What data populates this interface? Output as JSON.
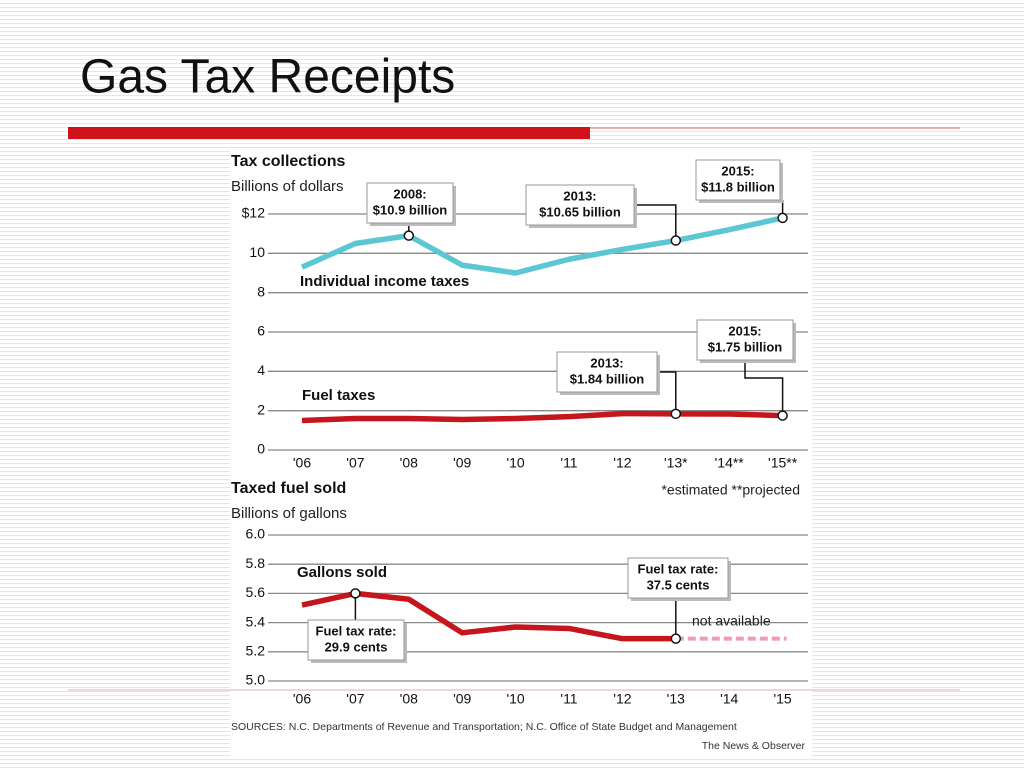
{
  "slide": {
    "title": "Gas Tax Receipts"
  },
  "chart_data": [
    {
      "type": "line",
      "title": "Tax collections",
      "subtitle": "Billions of dollars",
      "categories": [
        "'06",
        "'07",
        "'08",
        "'09",
        "'10",
        "'11",
        "'12",
        "'13*",
        "'14**",
        "'15**"
      ],
      "series": [
        {
          "name": "Individual income taxes",
          "color": "#5cc6d3",
          "values": [
            9.3,
            10.5,
            10.9,
            9.4,
            9.0,
            9.7,
            10.2,
            10.65,
            11.2,
            11.8
          ]
        },
        {
          "name": "Fuel taxes",
          "color": "#c4161c",
          "values": [
            1.5,
            1.6,
            1.6,
            1.55,
            1.6,
            1.7,
            1.85,
            1.84,
            1.83,
            1.75
          ]
        }
      ],
      "ylim": [
        0,
        12
      ],
      "yticks": [
        0,
        2,
        4,
        6,
        8,
        10,
        {
          "value": 12,
          "label": "$12"
        }
      ],
      "grid": true,
      "annotations": [
        [
          "2008:",
          "$10.9 billion"
        ],
        [
          "2013:",
          "$10.65 billion"
        ],
        [
          "2015:",
          "$11.8 billion"
        ],
        [
          "2013:",
          "$1.84 billion"
        ],
        [
          "2015:",
          "$1.75 billion"
        ]
      ],
      "note": "*estimated  **projected"
    },
    {
      "type": "line",
      "title": "Taxed fuel sold",
      "subtitle": "Billions of gallons",
      "categories": [
        "'06",
        "'07",
        "'08",
        "'09",
        "'10",
        "'11",
        "'12",
        "'13",
        "'14",
        "'15"
      ],
      "series": [
        {
          "name": "Gallons sold",
          "color": "#c4161c",
          "values": [
            5.52,
            5.6,
            5.56,
            5.33,
            5.37,
            5.36,
            5.29,
            5.29,
            null,
            null
          ]
        }
      ],
      "ylim": [
        5.0,
        6.0
      ],
      "yticks": [
        {
          "value": 5.0,
          "label": "5.0"
        },
        5.2,
        5.4,
        5.6,
        5.8,
        {
          "value": 6.0,
          "label": "6.0"
        }
      ],
      "grid": true,
      "annotations": [
        [
          "Fuel tax rate:",
          "29.9 cents"
        ],
        [
          "Fuel tax rate:",
          "37.5 cents"
        ]
      ],
      "note": "not available"
    }
  ],
  "sources": "SOURCES: N.C. Departments of Revenue and Transportation; N.C. Office of State Budget and Management",
  "credit": "The News & Observer"
}
